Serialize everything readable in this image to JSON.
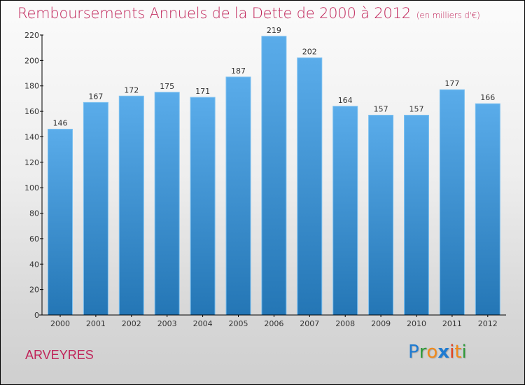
{
  "header": {
    "title": "Remboursements Annuels de la Dette de 2000 à 2012",
    "unit": "(en milliers d'€)"
  },
  "footer": {
    "commune": "ARVEYRES",
    "logo_letters": [
      {
        "ch": "P",
        "color": "#1f7bd1"
      },
      {
        "ch": "r",
        "color": "#2f9a3a"
      },
      {
        "ch": "o",
        "color": "#f08a1c"
      },
      {
        "ch": "x",
        "color": "#1f7bd1"
      },
      {
        "ch": "i",
        "color": "#e2401c"
      },
      {
        "ch": "t",
        "color": "#f08a1c"
      },
      {
        "ch": "i",
        "color": "#2f9a3a"
      }
    ]
  },
  "colors": {
    "title": "#c0255a",
    "bar_top": "#5aacea",
    "bar_bottom": "#2476b5",
    "axis": "#000000",
    "label": "#333333"
  },
  "chart_data": {
    "type": "bar",
    "title": "Remboursements Annuels de la Dette de 2000 à 2012",
    "subtitle": "(en milliers d'€)",
    "xlabel": "",
    "ylabel": "",
    "categories": [
      "2000",
      "2001",
      "2002",
      "2003",
      "2004",
      "2005",
      "2006",
      "2007",
      "2008",
      "2009",
      "2010",
      "2011",
      "2012"
    ],
    "values": [
      146,
      167,
      172,
      175,
      171,
      187,
      219,
      202,
      164,
      157,
      157,
      177,
      166
    ],
    "ylim": [
      0,
      220
    ],
    "yticks": [
      0,
      20,
      40,
      60,
      80,
      100,
      120,
      140,
      160,
      180,
      200,
      220
    ],
    "grid": false,
    "legend": "none",
    "data_labels": true
  }
}
